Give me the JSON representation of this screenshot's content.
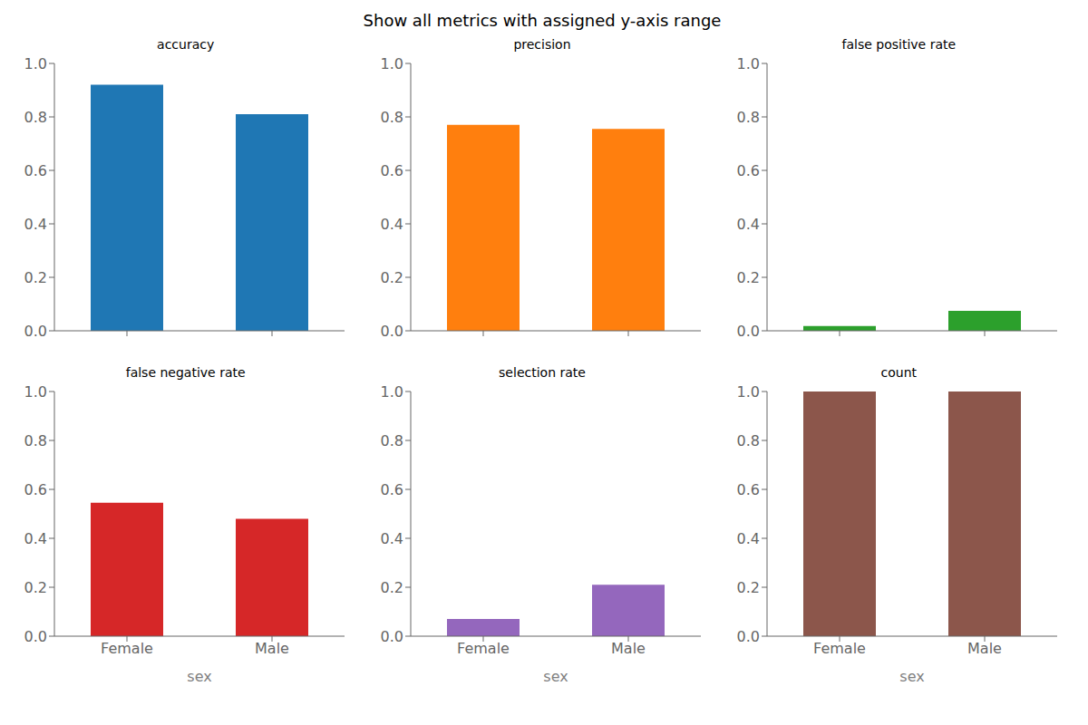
{
  "title": "Show all metrics with assigned y-axis range",
  "chart_data": [
    {
      "type": "bar",
      "title": "accuracy",
      "categories": [
        null,
        null
      ],
      "values": [
        0.92,
        0.81
      ],
      "color": "#1f77b4",
      "ylim": [
        0.0,
        1.0
      ],
      "yticks": [
        {
          "value": 0.0,
          "label": "0.0"
        },
        0.2,
        0.4,
        0.6,
        0.8,
        {
          "value": 1.0,
          "label": "1.0"
        }
      ]
    },
    {
      "type": "bar",
      "title": "precision",
      "categories": [
        null,
        null
      ],
      "values": [
        0.77,
        0.755
      ],
      "color": "#ff7f0e",
      "ylim": [
        0.0,
        1.0
      ],
      "yticks": [
        {
          "value": 0.0,
          "label": "0.0"
        },
        0.2,
        0.4,
        0.6,
        0.8,
        {
          "value": 1.0,
          "label": "1.0"
        }
      ]
    },
    {
      "type": "bar",
      "title": "false positive rate",
      "categories": [
        null,
        null
      ],
      "values": [
        0.018,
        0.075
      ],
      "color": "#2ca02c",
      "ylim": [
        0.0,
        1.0
      ],
      "yticks": [
        {
          "value": 0.0,
          "label": "0.0"
        },
        0.2,
        0.4,
        0.6,
        0.8,
        {
          "value": 1.0,
          "label": "1.0"
        }
      ]
    },
    {
      "type": "bar",
      "title": "false negative rate",
      "categories": [
        "Female",
        "Male"
      ],
      "values": [
        0.545,
        0.48
      ],
      "color": "#d62728",
      "ylim": [
        0.0,
        1.0
      ],
      "yticks": [
        {
          "value": 0.0,
          "label": "0.0"
        },
        0.2,
        0.4,
        0.6,
        0.8,
        {
          "value": 1.0,
          "label": "1.0"
        }
      ],
      "xlabel": "sex"
    },
    {
      "type": "bar",
      "title": "selection rate",
      "categories": [
        "Female",
        "Male"
      ],
      "values": [
        0.07,
        0.21
      ],
      "color": "#9467bd",
      "ylim": [
        0.0,
        1.0
      ],
      "yticks": [
        {
          "value": 0.0,
          "label": "0.0"
        },
        0.2,
        0.4,
        0.6,
        0.8,
        {
          "value": 1.0,
          "label": "1.0"
        }
      ],
      "xlabel": "sex"
    },
    {
      "type": "bar",
      "title": "count",
      "categories": [
        "Female",
        "Male"
      ],
      "values": [
        1.0,
        1.0
      ],
      "color": "#8c564b",
      "ylim": [
        0.0,
        1.0
      ],
      "yticks": [
        {
          "value": 0.0,
          "label": "0.0"
        },
        0.2,
        0.4,
        0.6,
        0.8,
        {
          "value": 1.0,
          "label": "1.0"
        }
      ],
      "xlabel": "sex"
    }
  ]
}
